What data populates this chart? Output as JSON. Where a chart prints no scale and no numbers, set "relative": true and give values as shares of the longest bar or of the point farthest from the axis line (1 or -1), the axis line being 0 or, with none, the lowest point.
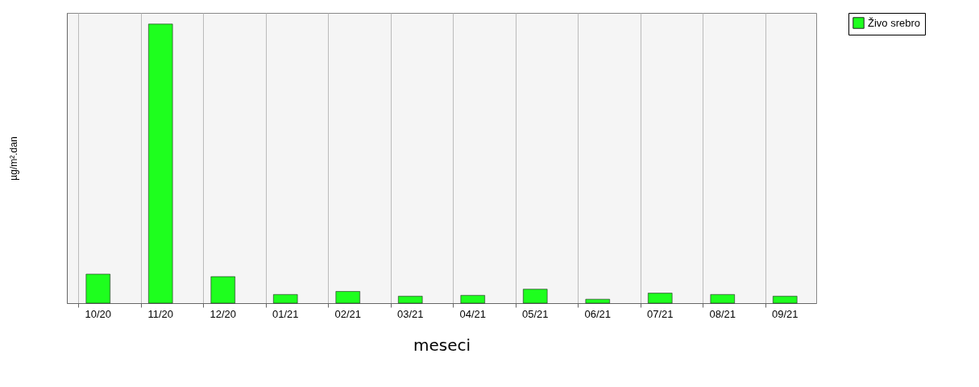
{
  "chart_data": {
    "type": "bar",
    "relative": true,
    "categories": [
      "10/20",
      "11/20",
      "12/20",
      "01/21",
      "02/21",
      "03/21",
      "04/21",
      "05/21",
      "06/21",
      "07/21",
      "08/21",
      "09/21"
    ],
    "series": [
      {
        "name": "Živo srebro",
        "color": "#1eff1e",
        "values": [
          0.104,
          1,
          0.095,
          0.031,
          0.042,
          0.025,
          0.028,
          0.05,
          0.014,
          0.036,
          0.031,
          0.025
        ]
      }
    ],
    "xlabel": "meseci",
    "ylabel": "µg/m².dan",
    "grid": "x",
    "legend": "top right"
  }
}
